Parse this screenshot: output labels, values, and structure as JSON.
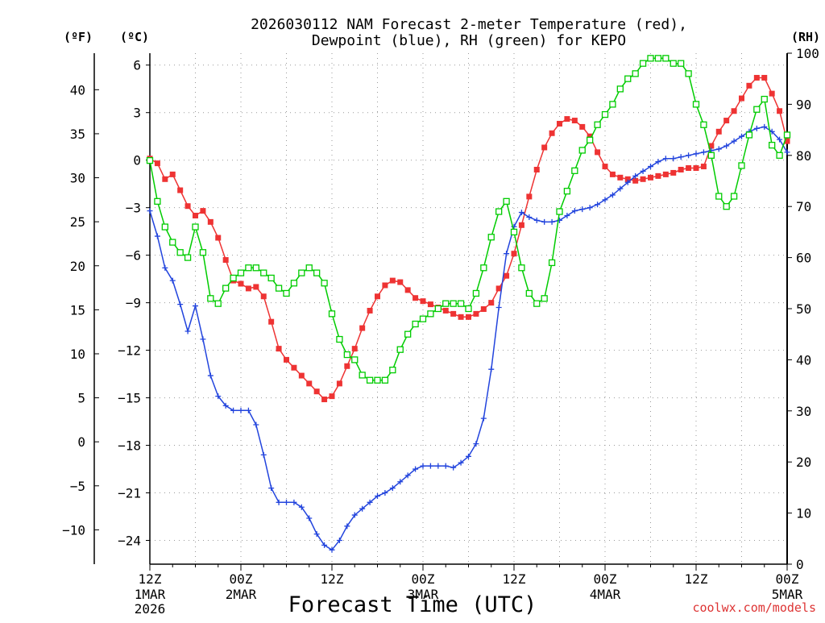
{
  "chart_data": {
    "type": "line",
    "title_line1": "2026030112 NAM Forecast 2-meter Temperature (red),",
    "title_line2": "Dewpoint (blue), RH (green) for KEPO",
    "xlabel": "Forecast Time (UTC)",
    "unit_f": "(ºF)",
    "unit_c": "(ºC)",
    "unit_rh": "(RH)",
    "watermark": "coolwx.com/models",
    "x_range_hours": [
      0,
      84
    ],
    "c_range": [
      -25.5,
      6.75
    ],
    "rh_range": [
      0,
      100
    ],
    "x_ticks": [
      {
        "hour": 0,
        "l1": "12Z",
        "l2": "1MAR",
        "l3": "2026"
      },
      {
        "hour": 12,
        "l1": "00Z",
        "l2": "2MAR",
        "l3": ""
      },
      {
        "hour": 24,
        "l1": "12Z",
        "l2": "",
        "l3": ""
      },
      {
        "hour": 36,
        "l1": "00Z",
        "l2": "3MAR",
        "l3": ""
      },
      {
        "hour": 48,
        "l1": "12Z",
        "l2": "",
        "l3": ""
      },
      {
        "hour": 60,
        "l1": "00Z",
        "l2": "4MAR",
        "l3": ""
      },
      {
        "hour": 72,
        "l1": "12Z",
        "l2": "",
        "l3": ""
      },
      {
        "hour": 84,
        "l1": "00Z",
        "l2": "5MAR",
        "l3": ""
      }
    ],
    "c_ticks": [
      6,
      3,
      0,
      -3,
      -6,
      -9,
      -12,
      -15,
      -18,
      -21,
      -24
    ],
    "c_tick_labels": [
      "6",
      "3",
      "0",
      "−3",
      "−6",
      "−9",
      "−12",
      "−15",
      "−18",
      "−21",
      "−24"
    ],
    "f_ticks": [
      40,
      35,
      30,
      25,
      20,
      15,
      10,
      5,
      0,
      -5,
      -10
    ],
    "f_tick_labels": [
      "40",
      "35",
      "30",
      "25",
      "20",
      "15",
      "10",
      "5",
      "0",
      "−5",
      "−10"
    ],
    "rh_ticks": [
      100,
      90,
      80,
      70,
      60,
      50,
      40,
      30,
      20,
      10,
      0
    ],
    "rh_tick_labels": [
      "100",
      "90",
      "80",
      "70",
      "60",
      "50",
      "40",
      "30",
      "20",
      "10",
      "0"
    ],
    "colors": {
      "temperature": "#ee3333",
      "dewpoint": "#2244dd",
      "rh": "#00cc00",
      "grid": "#999999",
      "watermark": "#dd3333"
    },
    "hours": [
      0,
      1,
      2,
      3,
      4,
      5,
      6,
      7,
      8,
      9,
      10,
      11,
      12,
      13,
      14,
      15,
      16,
      17,
      18,
      19,
      20,
      21,
      22,
      23,
      24,
      25,
      26,
      27,
      28,
      29,
      30,
      31,
      32,
      33,
      34,
      35,
      36,
      37,
      38,
      39,
      40,
      41,
      42,
      43,
      44,
      45,
      46,
      47,
      48,
      49,
      50,
      51,
      52,
      53,
      54,
      55,
      56,
      57,
      58,
      59,
      60,
      61,
      62,
      63,
      64,
      65,
      66,
      67,
      68,
      69,
      70,
      71,
      72,
      73,
      74,
      75,
      76,
      77,
      78,
      79,
      80,
      81,
      82,
      83,
      84
    ],
    "series": [
      {
        "name": "Temperature",
        "unit": "C",
        "values": [
          0.1,
          -0.2,
          -1.2,
          -0.9,
          -1.9,
          -2.9,
          -3.5,
          -3.2,
          -3.9,
          -4.9,
          -6.3,
          -7.6,
          -7.8,
          -8.1,
          -8.0,
          -8.6,
          -10.2,
          -11.9,
          -12.6,
          -13.1,
          -13.6,
          -14.1,
          -14.6,
          -15.1,
          -14.9,
          -14.1,
          -13.0,
          -11.9,
          -10.6,
          -9.5,
          -8.6,
          -7.9,
          -7.6,
          -7.7,
          -8.2,
          -8.7,
          -8.9,
          -9.1,
          -9.3,
          -9.5,
          -9.7,
          -9.9,
          -9.9,
          -9.7,
          -9.4,
          -9.0,
          -8.1,
          -7.3,
          -5.9,
          -4.1,
          -2.3,
          -0.6,
          0.8,
          1.7,
          2.3,
          2.6,
          2.5,
          2.1,
          1.5,
          0.5,
          -0.4,
          -0.9,
          -1.1,
          -1.2,
          -1.3,
          -1.2,
          -1.1,
          -1.0,
          -0.9,
          -0.8,
          -0.6,
          -0.5,
          -0.5,
          -0.4,
          0.9,
          1.8,
          2.5,
          3.1,
          3.9,
          4.7,
          5.2,
          5.2,
          4.2,
          3.1,
          1.2
        ]
      },
      {
        "name": "Dewpoint",
        "unit": "C",
        "values": [
          -3.2,
          -4.8,
          -6.8,
          -7.6,
          -9.1,
          -10.8,
          -9.2,
          -11.3,
          -13.6,
          -14.9,
          -15.5,
          -15.8,
          -15.8,
          -15.8,
          -16.7,
          -18.6,
          -20.7,
          -21.6,
          -21.6,
          -21.6,
          -21.9,
          -22.6,
          -23.6,
          -24.3,
          -24.6,
          -24.0,
          -23.1,
          -22.4,
          -22.0,
          -21.6,
          -21.2,
          -21.0,
          -20.7,
          -20.3,
          -19.9,
          -19.5,
          -19.3,
          -19.3,
          -19.3,
          -19.3,
          -19.4,
          -19.1,
          -18.7,
          -17.9,
          -16.3,
          -13.2,
          -9.3,
          -5.9,
          -4.2,
          -3.3,
          -3.6,
          -3.8,
          -3.9,
          -3.9,
          -3.8,
          -3.5,
          -3.2,
          -3.1,
          -3.0,
          -2.8,
          -2.5,
          -2.2,
          -1.8,
          -1.4,
          -1.0,
          -0.7,
          -0.4,
          -0.1,
          0.1,
          0.1,
          0.2,
          0.3,
          0.4,
          0.5,
          0.6,
          0.7,
          0.9,
          1.2,
          1.5,
          1.8,
          2.0,
          2.1,
          1.8,
          1.3,
          0.5
        ]
      },
      {
        "name": "RH",
        "unit": "%",
        "values": [
          79,
          71,
          66,
          63,
          61,
          60,
          66,
          61,
          52,
          51,
          54,
          56,
          57,
          58,
          58,
          57,
          56,
          54,
          53,
          55,
          57,
          58,
          57,
          55,
          49,
          44,
          41,
          40,
          37,
          36,
          36,
          36,
          38,
          42,
          45,
          47,
          48,
          49,
          50,
          51,
          51,
          51,
          50,
          53,
          58,
          64,
          69,
          71,
          65,
          58,
          53,
          51,
          52,
          59,
          69,
          73,
          77,
          81,
          83,
          86,
          88,
          90,
          93,
          95,
          96,
          98,
          99,
          99,
          99,
          98,
          98,
          96,
          90,
          86,
          80,
          72,
          70,
          72,
          78,
          84,
          89,
          91,
          82,
          80,
          84
        ]
      }
    ]
  }
}
